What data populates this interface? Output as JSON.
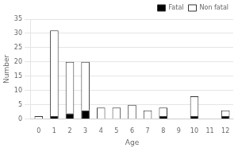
{
  "chart_data": {
    "type": "bar",
    "stacked": true,
    "categories": [
      "0",
      "1",
      "2",
      "3",
      "4",
      "5",
      "6",
      "7",
      "8",
      "9",
      "10",
      "11",
      "12"
    ],
    "series": [
      {
        "name": "Fatal",
        "color": "#000000",
        "values": [
          0,
          1,
          2,
          3,
          0,
          0,
          0,
          0,
          1,
          0,
          1,
          0,
          1
        ]
      },
      {
        "name": "Non fatal",
        "color": "#ffffff",
        "values": [
          1,
          30,
          18,
          17,
          4,
          4,
          5,
          3,
          3,
          0,
          7,
          0,
          2
        ]
      }
    ],
    "xlabel": "Age",
    "ylabel": "Number",
    "ylim": [
      0,
      35
    ],
    "yticks": [
      0,
      5,
      10,
      15,
      20,
      25,
      30,
      35
    ],
    "grid": true,
    "legend": "upper right"
  }
}
